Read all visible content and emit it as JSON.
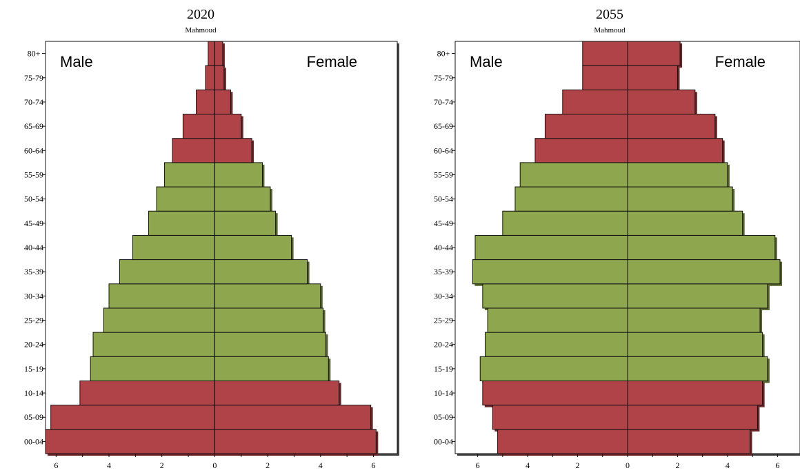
{
  "colors": {
    "old_age": "#b04347",
    "old_age_shadow": "#6e2528",
    "working_age": "#8ea64e",
    "working_age_shadow": "#56652b",
    "young_age": "#b04347",
    "young_age_shadow": "#6e2528",
    "outline": "#111111"
  },
  "chart_data": [
    {
      "type": "bar",
      "orientation": "horizontal-pyramid",
      "title": "2020",
      "subtitle": "Mahmoud",
      "left_label": "Male",
      "right_label": "Female",
      "xlim": [
        -6.4,
        6.9
      ],
      "xticks": [
        -6,
        -4,
        -2,
        0,
        2,
        4,
        6
      ],
      "xtick_labels": [
        "6",
        "4",
        "2",
        "0",
        "2",
        "4",
        "6"
      ],
      "categories": [
        "00-04",
        "05-09",
        "10-14",
        "15-19",
        "20-24",
        "25-29",
        "30-34",
        "35-39",
        "40-44",
        "45-49",
        "50-54",
        "55-59",
        "60-64",
        "65-69",
        "70-74",
        "75-79",
        "80+"
      ],
      "groups": [
        "young",
        "young",
        "young",
        "working",
        "working",
        "working",
        "working",
        "working",
        "working",
        "working",
        "working",
        "working",
        "old",
        "old",
        "old",
        "old",
        "old"
      ],
      "series": [
        {
          "name": "Male",
          "values": [
            6.4,
            6.2,
            5.1,
            4.7,
            4.6,
            4.2,
            4.0,
            3.6,
            3.1,
            2.5,
            2.2,
            1.9,
            1.6,
            1.2,
            0.7,
            0.35,
            0.25
          ]
        },
        {
          "name": "Female",
          "values": [
            6.1,
            5.9,
            4.7,
            4.3,
            4.2,
            4.1,
            4.0,
            3.5,
            2.9,
            2.3,
            2.1,
            1.8,
            1.4,
            1.0,
            0.6,
            0.35,
            0.3
          ]
        }
      ]
    },
    {
      "type": "bar",
      "orientation": "horizontal-pyramid",
      "title": "2055",
      "subtitle": "Mahmoud",
      "left_label": "Male",
      "right_label": "Female",
      "xlim": [
        -6.9,
        6.9
      ],
      "xticks": [
        -6,
        -4,
        -2,
        0,
        2,
        4,
        6
      ],
      "xtick_labels": [
        "6",
        "4",
        "2",
        "0",
        "2",
        "4",
        "6"
      ],
      "categories": [
        "00-04",
        "05-09",
        "10-14",
        "15-19",
        "20-24",
        "25-29",
        "30-34",
        "35-39",
        "40-44",
        "45-49",
        "50-54",
        "55-59",
        "60-64",
        "65-69",
        "70-74",
        "75-79",
        "80+"
      ],
      "groups": [
        "young",
        "young",
        "young",
        "working",
        "working",
        "working",
        "working",
        "working",
        "working",
        "working",
        "working",
        "working",
        "old",
        "old",
        "old",
        "old",
        "old"
      ],
      "series": [
        {
          "name": "Male",
          "values": [
            5.2,
            5.4,
            5.8,
            5.9,
            5.7,
            5.6,
            5.8,
            6.2,
            6.1,
            5.0,
            4.5,
            4.3,
            3.7,
            3.3,
            2.6,
            1.8,
            1.8
          ]
        },
        {
          "name": "Female",
          "values": [
            4.9,
            5.2,
            5.4,
            5.6,
            5.4,
            5.3,
            5.6,
            6.1,
            5.9,
            4.6,
            4.2,
            4.0,
            3.8,
            3.5,
            2.7,
            2.0,
            2.1
          ]
        }
      ]
    }
  ]
}
